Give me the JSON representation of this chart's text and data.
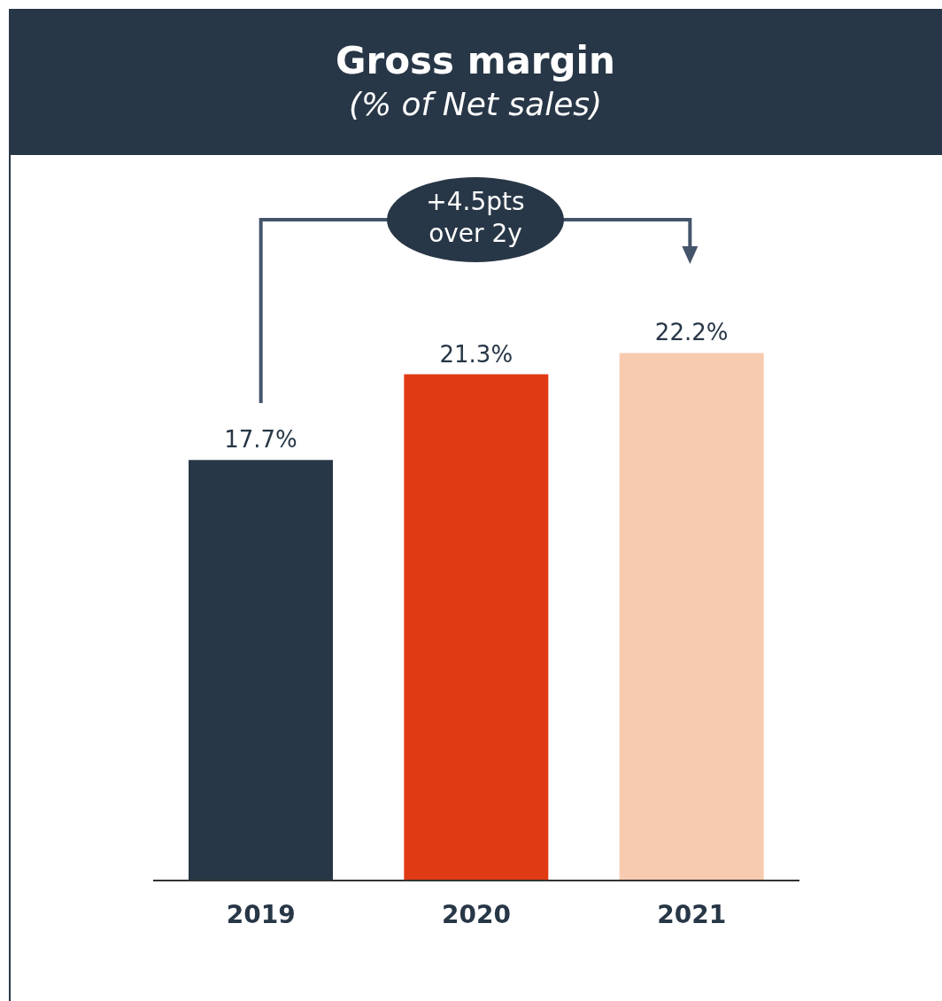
{
  "chart_data": {
    "type": "bar",
    "title": "Gross margin",
    "subtitle": "(% of Net sales)",
    "categories": [
      "2019",
      "2020",
      "2021"
    ],
    "values": [
      17.7,
      21.3,
      22.2
    ],
    "colors": [
      "#283747",
      "#e03a14",
      "#f7cbb0"
    ],
    "value_labels": [
      "17.7%",
      "21.3%",
      "22.2%"
    ],
    "annotations": [
      "+4.5pts over 2y"
    ],
    "grid": false,
    "legend": false
  }
}
